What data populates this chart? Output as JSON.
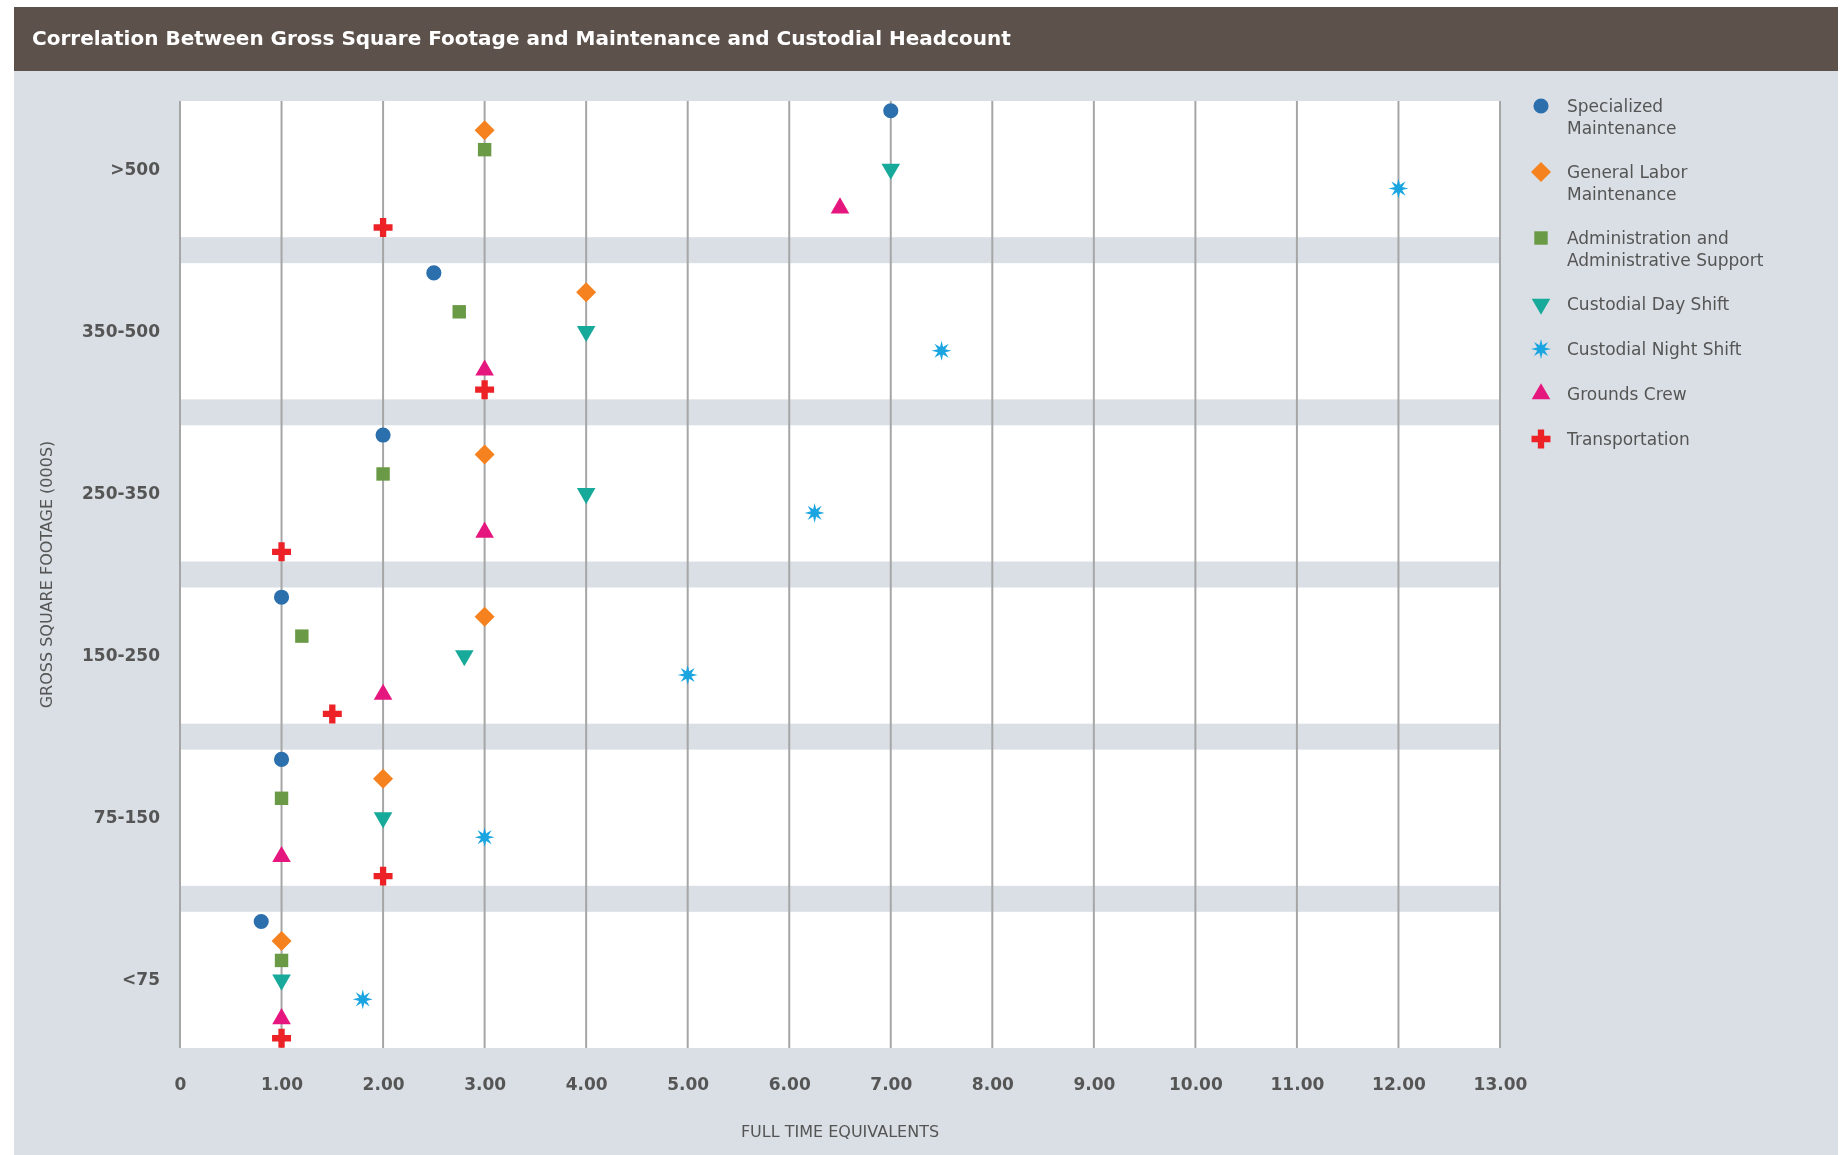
{
  "chart_data": {
    "type": "scatter",
    "orientation": "horizontal",
    "title": "Correlation Between Gross Square Footage and Maintenance and Custodial Headcount",
    "xlabel": "FULL TIME EQUIVALENTS",
    "ylabel": "GROSS SQUARE FOOTAGE (000S)",
    "categories": [
      ">500",
      "350-500",
      "250-350",
      "150-250",
      "75-150",
      "<75"
    ],
    "xlim": [
      0,
      13
    ],
    "xticks": [
      0,
      {
        "value": 1,
        "label": "1.00"
      },
      {
        "value": 2,
        "label": "2.00"
      },
      {
        "value": 3,
        "label": "3.00"
      },
      {
        "value": 4,
        "label": "4.00"
      },
      {
        "value": 5,
        "label": "5.00"
      },
      {
        "value": 6,
        "label": "6.00"
      },
      {
        "value": 7,
        "label": "7.00"
      },
      {
        "value": 8,
        "label": "8.00"
      },
      {
        "value": 9,
        "label": "9.00"
      },
      {
        "value": 10,
        "label": "10.00"
      },
      {
        "value": 11,
        "label": "11.00"
      },
      {
        "value": 12,
        "label": "12.00"
      },
      {
        "value": 13,
        "label": "13.00"
      }
    ],
    "grid": "x",
    "legend": "top right",
    "bands": [
      {
        "axis": "y",
        "from": ">500",
        "to": ">500",
        "color": "#ffffff"
      },
      {
        "axis": "y",
        "from": "350-500",
        "to": "350-500",
        "color": "#ffffff"
      },
      {
        "axis": "y",
        "from": "250-350",
        "to": "250-350",
        "color": "#ffffff"
      },
      {
        "axis": "y",
        "from": "150-250",
        "to": "150-250",
        "color": "#ffffff"
      },
      {
        "axis": "y",
        "from": "75-150",
        "to": "75-150",
        "color": "#ffffff"
      },
      {
        "axis": "y",
        "from": "<75",
        "to": "<75",
        "color": "#ffffff"
      }
    ],
    "series": [
      {
        "name": "Specialized Maintenance",
        "color": "#2c6fad",
        "marker": "circle",
        "values": [
          7.0,
          2.5,
          2.0,
          1.0,
          1.0,
          0.8
        ]
      },
      {
        "name": "General Labor Maintenance",
        "color": "#f5821f",
        "marker": "diamond",
        "values": [
          3.0,
          4.0,
          3.0,
          3.0,
          2.0,
          1.0
        ]
      },
      {
        "name": "Administration and Administrative Support",
        "color": "#6a9a45",
        "marker": "square",
        "values": [
          3.0,
          2.75,
          2.0,
          1.2,
          1.0,
          1.0
        ]
      },
      {
        "name": "Custodial Day Shift",
        "color": "#17a99a",
        "marker": "triangle-down",
        "values": [
          7.0,
          4.0,
          4.0,
          2.8,
          2.0,
          1.0
        ]
      },
      {
        "name": "Custodial Night Shift",
        "color": "#1aa5e0",
        "marker": "star",
        "values": [
          12.0,
          7.5,
          6.25,
          5.0,
          3.0,
          1.8
        ]
      },
      {
        "name": "Grounds Crew",
        "color": "#e5177f",
        "marker": "triangle",
        "values": [
          6.5,
          3.0,
          3.0,
          2.0,
          1.0,
          1.0
        ]
      },
      {
        "name": "Transportation",
        "color": "#ec2227",
        "marker": "cross",
        "values": [
          2.0,
          3.0,
          1.0,
          1.5,
          2.0,
          1.0
        ]
      }
    ]
  }
}
